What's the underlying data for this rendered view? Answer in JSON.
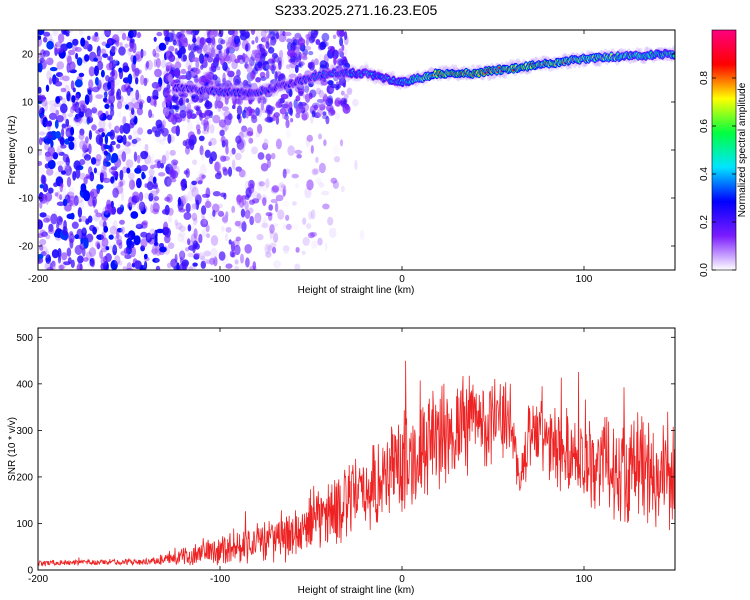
{
  "title": "S233.2025.271.16.23.E05",
  "chart_data": [
    {
      "type": "heatmap",
      "xlabel": "Height of straight line (km)",
      "ylabel": "Frequency (Hz)",
      "xlim": [
        -200,
        150
      ],
      "ylim": [
        -25,
        25
      ],
      "x_ticks": [
        -200,
        -100,
        0,
        100
      ],
      "y_ticks": [
        -20,
        -10,
        0,
        10,
        20
      ],
      "colorbar": {
        "label": "Normalized spectral amplitude",
        "range": [
          0,
          1
        ],
        "ticks": [
          0.0,
          0.2,
          0.4,
          0.6,
          0.8
        ],
        "colors": [
          "#ffffff",
          "#7a1cff",
          "#0000ff",
          "#00e5ff",
          "#00ff40",
          "#ffff00",
          "#ff0000",
          "#ff0080"
        ]
      },
      "ridge": {
        "x": [
          -125,
          -100,
          -80,
          -60,
          -40,
          -20,
          0,
          20,
          40,
          60,
          80,
          100,
          120,
          150
        ],
        "frequency": [
          13,
          12,
          12,
          14,
          16,
          16,
          14,
          16,
          16,
          17,
          18,
          19,
          19.5,
          20
        ],
        "amplitude": [
          0.3,
          0.35,
          0.35,
          0.3,
          0.4,
          0.45,
          0.5,
          0.9,
          0.95,
          0.9,
          0.85,
          0.8,
          0.7,
          0.6
        ]
      },
      "noise_edge_x": -55
    },
    {
      "type": "line",
      "xlabel": "Height of straight line (km)",
      "ylabel": "SNR (10 * v/v)",
      "xlim": [
        -200,
        150
      ],
      "ylim": [
        0,
        520
      ],
      "x_ticks": [
        -200,
        -100,
        0,
        100
      ],
      "y_ticks": [
        0,
        100,
        200,
        300,
        400,
        500
      ],
      "color": "#ee2222",
      "envelope": {
        "x": [
          -200,
          -140,
          -125,
          -100,
          -80,
          -60,
          -40,
          -20,
          0,
          20,
          40,
          60,
          65,
          70,
          80,
          100,
          120,
          150
        ],
        "mean": [
          15,
          18,
          25,
          45,
          60,
          70,
          120,
          170,
          230,
          280,
          320,
          320,
          180,
          300,
          270,
          240,
          220,
          200
        ],
        "spread": [
          6,
          7,
          15,
          35,
          45,
          55,
          80,
          90,
          110,
          120,
          110,
          80,
          40,
          80,
          90,
          100,
          120,
          120
        ]
      }
    }
  ]
}
